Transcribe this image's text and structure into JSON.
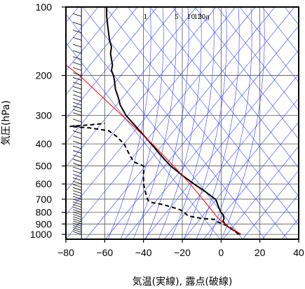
{
  "chart_data": {
    "type": "line",
    "title": "",
    "xlabel": "気温(実線), 露点(破線)",
    "ylabel": "気圧(hPa)",
    "x_scale": "linear",
    "y_scale": "log",
    "y_inverted": true,
    "xlim": [
      -80,
      40
    ],
    "ylim": [
      1050,
      100
    ],
    "x_ticks": [
      -80,
      -60,
      -40,
      -20,
      0,
      20,
      40
    ],
    "x_tick_labels": [
      "−80",
      "−60",
      "−40",
      "−20",
      "0",
      "20",
      "40"
    ],
    "y_ticks": [
      100,
      200,
      300,
      400,
      500,
      600,
      700,
      800,
      900,
      1000
    ],
    "y_tick_labels": [
      "100",
      "200",
      "300",
      "400",
      "500",
      "600",
      "700",
      "800",
      "900",
      "1000"
    ],
    "mixing_ratio_labels": [
      "1",
      "5",
      "10",
      "15",
      "20g"
    ],
    "series": [
      {
        "style": "solid",
        "color": "#000000",
        "points": [
          {
            "p": 1000,
            "t": 10
          },
          {
            "p": 975,
            "t": 8
          },
          {
            "p": 950,
            "t": 5.5
          },
          {
            "p": 925,
            "t": 3.5
          },
          {
            "p": 900,
            "t": 2
          },
          {
            "p": 875,
            "t": 1
          },
          {
            "p": 850,
            "t": 1.5
          },
          {
            "p": 820,
            "t": 1
          },
          {
            "p": 800,
            "t": 0
          },
          {
            "p": 770,
            "t": -1
          },
          {
            "p": 750,
            "t": -1.5
          },
          {
            "p": 730,
            "t": -2
          },
          {
            "p": 710,
            "t": -2.5
          },
          {
            "p": 700,
            "t": -3
          },
          {
            "p": 650,
            "t": -8
          },
          {
            "p": 600,
            "t": -14
          },
          {
            "p": 550,
            "t": -20
          },
          {
            "p": 500,
            "t": -26
          },
          {
            "p": 450,
            "t": -31
          },
          {
            "p": 400,
            "t": -36
          },
          {
            "p": 350,
            "t": -42
          },
          {
            "p": 300,
            "t": -49
          },
          {
            "p": 270,
            "t": -52
          },
          {
            "p": 250,
            "t": -53
          },
          {
            "p": 230,
            "t": -54.5
          },
          {
            "p": 210,
            "t": -55
          },
          {
            "p": 200,
            "t": -55.5
          },
          {
            "p": 190,
            "t": -56.5
          },
          {
            "p": 180,
            "t": -56
          },
          {
            "p": 170,
            "t": -56.5
          },
          {
            "p": 160,
            "t": -57
          },
          {
            "p": 150,
            "t": -56.5
          },
          {
            "p": 140,
            "t": -57.5
          },
          {
            "p": 130,
            "t": -58
          },
          {
            "p": 120,
            "t": -58.5
          },
          {
            "p": 110,
            "t": -59
          },
          {
            "p": 100,
            "t": -59
          }
        ]
      },
      {
        "style": "dashed",
        "color": "#000000",
        "points": [
          {
            "p": 1000,
            "t": 9
          },
          {
            "p": 950,
            "t": 6
          },
          {
            "p": 925,
            "t": 4
          },
          {
            "p": 900,
            "t": 1
          },
          {
            "p": 880,
            "t": -2
          },
          {
            "p": 860,
            "t": -3
          },
          {
            "p": 850,
            "t": -10
          },
          {
            "p": 830,
            "t": -17
          },
          {
            "p": 800,
            "t": -19
          },
          {
            "p": 780,
            "t": -21
          },
          {
            "p": 760,
            "t": -25
          },
          {
            "p": 740,
            "t": -30
          },
          {
            "p": 720,
            "t": -37
          },
          {
            "p": 700,
            "t": -38
          },
          {
            "p": 650,
            "t": -39
          },
          {
            "p": 600,
            "t": -40
          },
          {
            "p": 550,
            "t": -40
          },
          {
            "p": 500,
            "t": -40
          },
          {
            "p": 480,
            "t": -45
          },
          {
            "p": 450,
            "t": -47
          },
          {
            "p": 400,
            "t": -50
          },
          {
            "p": 370,
            "t": -54
          },
          {
            "p": 350,
            "t": -58
          },
          {
            "p": 340,
            "t": -68
          },
          {
            "p": 335,
            "t": -78
          },
          {
            "p": 330,
            "t": -68
          },
          {
            "p": 325,
            "t": -60
          }
        ]
      },
      {
        "style": "solid",
        "color": "#ff0000",
        "points": [
          {
            "p": 1000,
            "t": 10
          },
          {
            "p": 925,
            "t": 3.5
          },
          {
            "p": 850,
            "t": -1.5
          },
          {
            "p": 700,
            "t": -9.5
          },
          {
            "p": 600,
            "t": -16
          },
          {
            "p": 500,
            "t": -24.5
          },
          {
            "p": 400,
            "t": -35.5
          },
          {
            "p": 300,
            "t": -51
          },
          {
            "p": 250,
            "t": -61
          },
          {
            "p": 200,
            "t": -73
          },
          {
            "p": 180,
            "t": -80
          }
        ]
      }
    ],
    "wind_profile": {
      "x": -72,
      "pressures": [
        100,
        110,
        120,
        130,
        140,
        150,
        160,
        170,
        180,
        190,
        200,
        210,
        220,
        230,
        240,
        250,
        260,
        270,
        280,
        290,
        300,
        320,
        340,
        360,
        380,
        400,
        420,
        440,
        460,
        480,
        500,
        520,
        540,
        560,
        580,
        600,
        620,
        640,
        660,
        680,
        700,
        720,
        740,
        760,
        780,
        800,
        820,
        840,
        860,
        880,
        900,
        920,
        940,
        960,
        980,
        1000
      ]
    },
    "grid": true
  }
}
